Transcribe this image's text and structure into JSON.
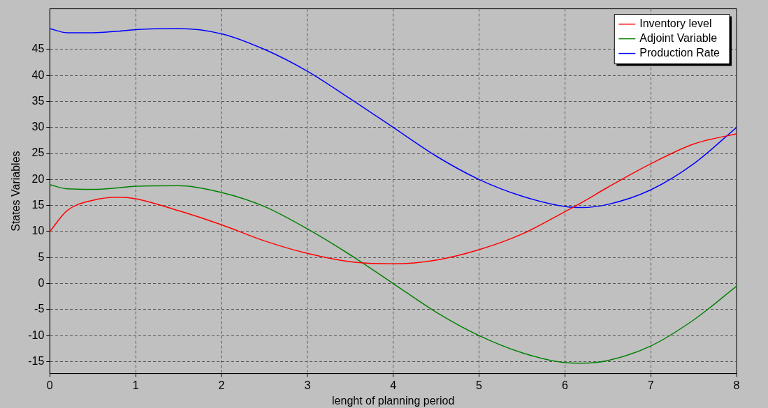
{
  "chart_data": {
    "type": "line",
    "xlabel": "lenght of planning period",
    "ylabel": "States Variables",
    "xlim": [
      0,
      8
    ],
    "xticks": [
      0,
      1,
      2,
      3,
      4,
      5,
      6,
      7,
      8
    ],
    "ylim": [
      -17.3,
      52.8
    ],
    "yticks": [
      -15,
      -10,
      -5,
      0,
      5,
      10,
      15,
      20,
      25,
      30,
      35,
      40,
      45
    ],
    "x": [
      0,
      0.2,
      0.5,
      0.8,
      1,
      1.5,
      2,
      2.5,
      3,
      3.5,
      4,
      4.5,
      5,
      5.5,
      6,
      6.2,
      6.5,
      7,
      7.5,
      8
    ],
    "series": [
      {
        "name": "Inventory level",
        "color": "#ff0000",
        "values": [
          10,
          14,
          16,
          16.6,
          16.3,
          14,
          11.3,
          8.2,
          5.8,
          4.2,
          3.8,
          4.5,
          6.5,
          9.5,
          13.8,
          15.6,
          18.5,
          23,
          26.8,
          28.8
        ]
      },
      {
        "name": "Adjoint Variable",
        "color": "#008000",
        "values": [
          19,
          18.2,
          18.1,
          18.4,
          18.7,
          18.8,
          17.5,
          14.8,
          10.5,
          5.5,
          0,
          -5.5,
          -10,
          -13.3,
          -15.2,
          -15.3,
          -14.8,
          -12,
          -7,
          -0.5
        ]
      },
      {
        "name": "Production Rate",
        "color": "#0000ff",
        "values": [
          49,
          48.2,
          48.2,
          48.5,
          48.8,
          49,
          48,
          45,
          40.8,
          35.5,
          30,
          24.5,
          20,
          16.8,
          14.8,
          14.6,
          15.2,
          18,
          23,
          30
        ]
      }
    ],
    "grid": true,
    "legend": "top right",
    "marker": "none",
    "line_style": "solid"
  }
}
